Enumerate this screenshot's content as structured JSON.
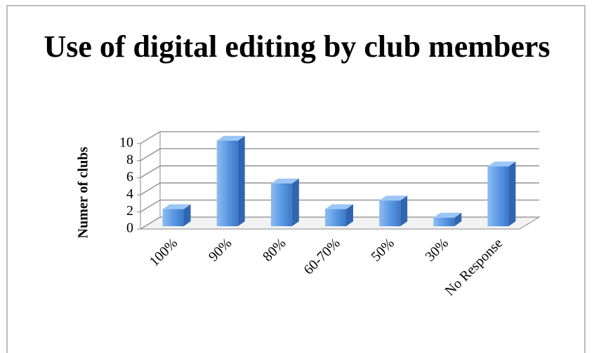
{
  "chart_data": {
    "type": "bar",
    "title": "Use of digital editing by club members",
    "y_label": "Numer of clubs",
    "categories": [
      "100%",
      "90%",
      "80%",
      "60-70%",
      "50%",
      "30%",
      "No Response"
    ],
    "values": [
      2,
      10,
      5,
      2,
      3,
      1,
      7
    ],
    "color": "#4f8fdc",
    "ylim": [
      0,
      10
    ],
    "yticks": [
      0,
      2,
      4,
      6,
      8,
      10
    ],
    "grid": true
  }
}
